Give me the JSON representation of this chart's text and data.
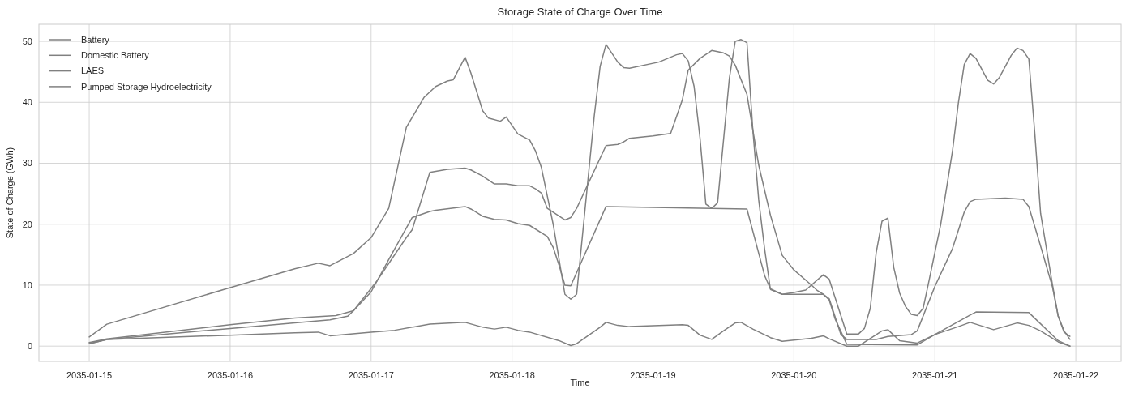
{
  "chart_data": {
    "type": "line",
    "title": "Storage State of Charge Over Time",
    "xlabel": "Time",
    "ylabel": "State of Charge (GWh)",
    "xlim": [
      "2035-01-14T15:26",
      "2035-01-22T07:43"
    ],
    "xticks": [
      "2035-01-15",
      "2035-01-16",
      "2035-01-17",
      "2035-01-18",
      "2035-01-19",
      "2035-01-20",
      "2035-01-21",
      "2035-01-22"
    ],
    "ylim": [
      -2.5,
      52.8
    ],
    "yticks": [
      0,
      10,
      20,
      30,
      40,
      50
    ],
    "grid": true,
    "legend": "top left",
    "line_style": "solid",
    "marker": "none",
    "series": [
      {
        "name": "Battery",
        "color": "#808080",
        "x": [
          "2035-01-15T00:00",
          "2035-01-15T03:00",
          "2035-01-16T00:00",
          "2035-01-16T11:00",
          "2035-01-16T15:00",
          "2035-01-16T17:00",
          "2035-01-16T21:00",
          "2035-01-17T00:00",
          "2035-01-17T03:00",
          "2035-01-17T06:00",
          "2035-01-17T09:00",
          "2035-01-17T11:00",
          "2035-01-17T13:00",
          "2035-01-17T14:00",
          "2035-01-17T16:00",
          "2035-01-17T17:00",
          "2035-01-17T19:00",
          "2035-01-17T20:00",
          "2035-01-17T22:00",
          "2035-01-17T23:00",
          "2035-01-18T01:00",
          "2035-01-18T03:00",
          "2035-01-18T04:00",
          "2035-01-18T05:00",
          "2035-01-18T07:00",
          "2035-01-18T09:00",
          "2035-01-18T10:00",
          "2035-01-18T11:00",
          "2035-01-18T14:00",
          "2035-01-18T15:00",
          "2035-01-18T16:00",
          "2035-01-18T18:00",
          "2035-01-18T19:00",
          "2035-01-18T20:00",
          "2035-01-19T01:00",
          "2035-01-19T04:00",
          "2035-01-19T05:00",
          "2035-01-19T06:00",
          "2035-01-19T07:00",
          "2035-01-19T08:00",
          "2035-01-19T09:00",
          "2035-01-19T10:00",
          "2035-01-19T11:00",
          "2035-01-19T13:00",
          "2035-01-19T14:00",
          "2035-01-19T15:00",
          "2035-01-19T16:00",
          "2035-01-19T17:00",
          "2035-01-19T18:00",
          "2035-01-19T19:00",
          "2035-01-19T20:00",
          "2035-01-19T22:00",
          "2035-01-20T00:00",
          "2035-01-20T02:00",
          "2035-01-20T05:00",
          "2035-01-20T06:00",
          "2035-01-20T09:00",
          "2035-01-20T11:00",
          "2035-01-20T12:00",
          "2035-01-20T13:00",
          "2035-01-20T14:00",
          "2035-01-20T15:00",
          "2035-01-20T16:00",
          "2035-01-20T17:00",
          "2035-01-20T18:00",
          "2035-01-20T19:00",
          "2035-01-20T20:00",
          "2035-01-20T21:00",
          "2035-01-20T22:00",
          "2035-01-20T23:00",
          "2035-01-21T01:00",
          "2035-01-21T03:00",
          "2035-01-21T04:00",
          "2035-01-21T05:00",
          "2035-01-21T06:00",
          "2035-01-21T07:00",
          "2035-01-21T09:00",
          "2035-01-21T10:00",
          "2035-01-21T11:00",
          "2035-01-21T13:00",
          "2035-01-21T14:00",
          "2035-01-21T15:00",
          "2035-01-21T16:00",
          "2035-01-21T17:00",
          "2035-01-21T18:00",
          "2035-01-21T20:00",
          "2035-01-21T21:00",
          "2035-01-21T22:00",
          "2035-01-21T23:00"
        ],
        "values": [
          1.5,
          3.6,
          9.6,
          12.7,
          13.6,
          13.2,
          15.2,
          17.8,
          22.6,
          35.9,
          40.8,
          42.6,
          43.5,
          43.7,
          47.4,
          44.8,
          38.6,
          37.4,
          36.9,
          37.6,
          34.8,
          33.8,
          32.0,
          29.3,
          20.0,
          8.5,
          7.7,
          8.5,
          37.8,
          45.9,
          49.5,
          46.6,
          45.7,
          45.6,
          46.6,
          47.8,
          48.0,
          46.8,
          42.6,
          34.2,
          23.3,
          22.6,
          23.5,
          43.9,
          50.0,
          50.3,
          49.8,
          35.5,
          24.0,
          16.0,
          9.3,
          8.5,
          8.8,
          9.2,
          11.7,
          11.0,
          2.0,
          2.0,
          2.9,
          6.2,
          15.3,
          20.5,
          21.0,
          12.9,
          8.7,
          6.5,
          5.2,
          5.0,
          6.2,
          10.7,
          20.0,
          32.0,
          39.9,
          46.2,
          48.0,
          47.2,
          43.6,
          43.0,
          44.1,
          47.7,
          48.9,
          48.5,
          47.1,
          35.1,
          21.8,
          10.2,
          4.9,
          2.5,
          1.1
        ]
      },
      {
        "name": "Domestic Battery",
        "color": "#808080",
        "x": [
          "2035-01-15T00:00",
          "2035-01-15T03:00",
          "2035-01-16T00:00",
          "2035-01-16T11:00",
          "2035-01-16T15:00",
          "2035-01-16T17:00",
          "2035-01-17T00:00",
          "2035-01-17T04:00",
          "2035-01-17T10:00",
          "2035-01-17T16:00",
          "2035-01-17T19:00",
          "2035-01-17T21:00",
          "2035-01-17T23:00",
          "2035-01-18T01:00",
          "2035-01-18T03:00",
          "2035-01-18T08:00",
          "2035-01-18T10:00",
          "2035-01-18T11:00",
          "2035-01-18T15:00",
          "2035-01-18T16:00",
          "2035-01-18T18:00",
          "2035-01-18T20:00",
          "2035-01-19T05:00",
          "2035-01-19T06:00",
          "2035-01-19T08:00",
          "2035-01-19T10:00",
          "2035-01-19T12:00",
          "2035-01-19T14:00",
          "2035-01-19T15:00",
          "2035-01-19T17:00",
          "2035-01-19T20:00",
          "2035-01-19T22:00",
          "2035-01-20T03:00",
          "2035-01-20T05:00",
          "2035-01-20T06:00",
          "2035-01-20T09:00",
          "2035-01-20T11:00",
          "2035-01-20T15:00",
          "2035-01-20T16:00",
          "2035-01-20T18:00",
          "2035-01-20T21:00",
          "2035-01-21T00:00",
          "2035-01-21T04:00",
          "2035-01-21T06:00",
          "2035-01-21T10:00",
          "2035-01-21T14:00",
          "2035-01-21T16:00",
          "2035-01-21T18:00",
          "2035-01-21T21:00",
          "2035-01-21T23:00"
        ],
        "values": [
          0.4,
          1.1,
          1.8,
          2.2,
          2.3,
          1.7,
          2.3,
          2.6,
          3.6,
          3.9,
          3.1,
          2.8,
          3.1,
          2.6,
          2.3,
          0.9,
          0.1,
          0.4,
          3.1,
          3.9,
          3.4,
          3.2,
          3.5,
          3.4,
          1.8,
          1.1,
          2.5,
          3.8,
          3.9,
          2.8,
          1.4,
          0.8,
          1.3,
          1.7,
          1.2,
          0.0,
          0.0,
          2.5,
          2.7,
          0.9,
          0.5,
          1.9,
          3.2,
          3.9,
          2.7,
          3.8,
          3.4,
          2.5,
          0.7,
          0.0
        ]
      },
      {
        "name": "LAES",
        "color": "#808080",
        "x": [
          "2035-01-15T00:00",
          "2035-01-15T03:00",
          "2035-01-16T00:00",
          "2035-01-16T11:00",
          "2035-01-16T18:00",
          "2035-01-16T21:00",
          "2035-01-17T00:00",
          "2035-01-17T03:00",
          "2035-01-17T07:00",
          "2035-01-17T10:00",
          "2035-01-17T11:00",
          "2035-01-17T16:00",
          "2035-01-17T17:00",
          "2035-01-17T19:00",
          "2035-01-17T21:00",
          "2035-01-17T23:00",
          "2035-01-18T01:00",
          "2035-01-18T03:00",
          "2035-01-18T06:00",
          "2035-01-18T07:00",
          "2035-01-18T08:00",
          "2035-01-18T09:00",
          "2035-01-18T10:00",
          "2035-01-18T16:00",
          "2035-01-19T16:00",
          "2035-01-19T19:00",
          "2035-01-19T20:00",
          "2035-01-19T22:00",
          "2035-01-20T05:00",
          "2035-01-20T06:00",
          "2035-01-20T08:00",
          "2035-01-20T09:00",
          "2035-01-20T14:00",
          "2035-01-20T16:00",
          "2035-01-20T20:00",
          "2035-01-20T21:00",
          "2035-01-21T00:00",
          "2035-01-21T03:00",
          "2035-01-21T05:00",
          "2035-01-21T06:00",
          "2035-01-21T07:00",
          "2035-01-21T12:00",
          "2035-01-21T15:00",
          "2035-01-21T16:00",
          "2035-01-21T18:00",
          "2035-01-21T20:00",
          "2035-01-21T21:00",
          "2035-01-21T22:00",
          "2035-01-21T23:00"
        ],
        "values": [
          0.6,
          1.2,
          3.5,
          4.6,
          5.0,
          5.8,
          8.9,
          14.2,
          21.1,
          22.1,
          22.3,
          22.9,
          22.5,
          21.3,
          20.8,
          20.7,
          20.1,
          19.8,
          18.0,
          16.2,
          13.3,
          10.0,
          9.9,
          22.9,
          22.5,
          11.6,
          9.4,
          8.5,
          8.5,
          7.8,
          1.9,
          1.1,
          1.1,
          1.6,
          1.9,
          2.5,
          9.8,
          16.0,
          22.0,
          23.7,
          24.1,
          24.3,
          24.1,
          22.9,
          16.4,
          9.8,
          4.9,
          2.3,
          1.6
        ]
      },
      {
        "name": "Pumped Storage Hydroelectricity",
        "color": "#808080",
        "x": [
          "2035-01-15T00:00",
          "2035-01-15T03:00",
          "2035-01-16T00:00",
          "2035-01-16T11:00",
          "2035-01-16T17:00",
          "2035-01-16T20:00",
          "2035-01-16T21:00",
          "2035-01-17T01:00",
          "2035-01-17T06:00",
          "2035-01-17T07:00",
          "2035-01-17T10:00",
          "2035-01-17T13:00",
          "2035-01-17T16:00",
          "2035-01-17T17:00",
          "2035-01-17T19:00",
          "2035-01-17T21:00",
          "2035-01-17T23:00",
          "2035-01-18T01:00",
          "2035-01-18T03:00",
          "2035-01-18T04:00",
          "2035-01-18T05:00",
          "2035-01-18T06:00",
          "2035-01-18T09:00",
          "2035-01-18T10:00",
          "2035-01-18T11:00",
          "2035-01-18T16:00",
          "2035-01-18T18:00",
          "2035-01-18T19:00",
          "2035-01-18T20:00",
          "2035-01-19T00:00",
          "2035-01-19T03:00",
          "2035-01-19T05:00",
          "2035-01-19T06:00",
          "2035-01-19T08:00",
          "2035-01-19T10:00",
          "2035-01-19T12:00",
          "2035-01-19T13:00",
          "2035-01-19T14:00",
          "2035-01-19T16:00",
          "2035-01-19T18:00",
          "2035-01-19T20:00",
          "2035-01-19T22:00",
          "2035-01-20T00:00",
          "2035-01-20T03:00",
          "2035-01-20T04:00",
          "2035-01-20T05:00",
          "2035-01-20T06:00",
          "2035-01-20T07:00",
          "2035-01-20T09:00",
          "2035-01-20T21:00",
          "2035-01-21T00:00",
          "2035-01-21T06:00",
          "2035-01-21T07:00",
          "2035-01-21T16:00",
          "2035-01-21T21:00",
          "2035-01-21T23:00"
        ],
        "values": [
          0.4,
          1.1,
          2.9,
          3.8,
          4.3,
          4.9,
          5.8,
          10.7,
          17.8,
          19.1,
          28.5,
          29.0,
          29.2,
          28.9,
          27.9,
          26.6,
          26.6,
          26.3,
          26.3,
          25.8,
          25.1,
          22.6,
          20.7,
          21.1,
          22.6,
          32.9,
          33.1,
          33.5,
          34.1,
          34.5,
          34.9,
          40.4,
          45.3,
          47.2,
          48.5,
          48.1,
          47.6,
          46.1,
          41.3,
          29.7,
          21.5,
          14.9,
          12.5,
          10.0,
          9.1,
          8.5,
          7.6,
          4.5,
          0.3,
          0.2,
          1.9,
          5.1,
          5.6,
          5.5,
          0.9,
          0.0
        ]
      }
    ]
  }
}
